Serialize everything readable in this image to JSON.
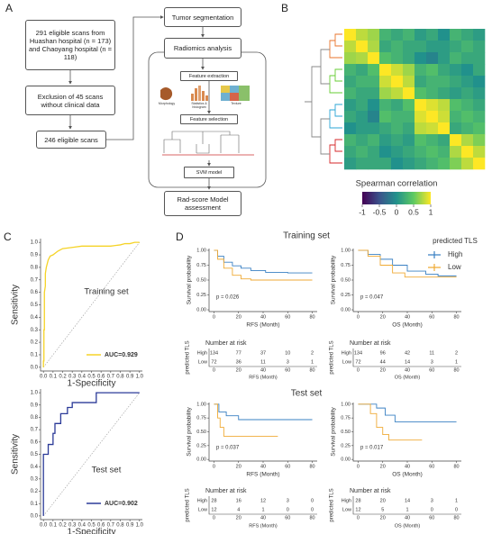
{
  "diagram": {
    "panel_labels": [
      "A",
      "B",
      "C",
      "D"
    ],
    "nodes": [
      "291 eligible scans from Huashan hospital (n = 173) and Chaoyang hospital (n = 118)",
      "Exclusion of 45 scans without clinical data",
      "246 eligible scans",
      "Tumor segmentation",
      "Radiomics analysis",
      "Feature extraction",
      "Feature selection",
      "SVM model",
      "Rad-score Model assessment"
    ],
    "icons": [
      "Morphology",
      "Statistics & histogram",
      "Texture"
    ]
  },
  "panel_d": {
    "headings": [
      "Training set",
      "Test set"
    ]
  },
  "chart_data": [
    {
      "type": "heatmap",
      "values": [
        [
          1,
          0.8,
          0.7,
          0.3,
          0.2,
          0.3,
          0.1,
          0.2,
          0.0,
          0.3,
          0.2,
          0.1
        ],
        [
          0.8,
          1,
          0.75,
          0.2,
          0.3,
          0.2,
          0.2,
          0.1,
          0.1,
          0.2,
          0.3,
          0.2
        ],
        [
          0.7,
          0.75,
          1,
          0.4,
          0.3,
          0.2,
          0.0,
          -0.1,
          0.1,
          0.3,
          0.2,
          0.2
        ],
        [
          0.3,
          0.2,
          0.4,
          1,
          0.85,
          0.7,
          0.3,
          0.4,
          0.2,
          0.1,
          0.0,
          0.2
        ],
        [
          0.2,
          0.3,
          0.3,
          0.85,
          1,
          0.8,
          0.2,
          0.3,
          0.3,
          0.2,
          0.1,
          0.0
        ],
        [
          0.3,
          0.2,
          0.2,
          0.7,
          0.8,
          1,
          0.4,
          0.3,
          0.2,
          0.1,
          0.2,
          0.1
        ],
        [
          0.1,
          0.2,
          0.0,
          0.3,
          0.2,
          0.4,
          1,
          0.9,
          0.8,
          0.4,
          0.3,
          0.2
        ],
        [
          0.2,
          0.1,
          -0.1,
          0.4,
          0.3,
          0.3,
          0.9,
          1,
          0.85,
          0.3,
          0.4,
          0.3
        ],
        [
          0.0,
          0.1,
          0.1,
          0.2,
          0.3,
          0.2,
          0.8,
          0.85,
          1,
          0.2,
          0.3,
          0.4
        ],
        [
          0.3,
          0.2,
          0.3,
          0.1,
          0.2,
          0.1,
          0.4,
          0.3,
          0.2,
          1,
          0.75,
          0.6
        ],
        [
          0.2,
          0.3,
          0.2,
          0.0,
          0.1,
          0.2,
          0.3,
          0.4,
          0.3,
          0.75,
          1,
          0.8
        ],
        [
          0.1,
          0.2,
          0.2,
          0.2,
          0.0,
          0.1,
          0.2,
          0.3,
          0.4,
          0.6,
          0.8,
          1
        ]
      ],
      "colorbar": {
        "title": "Spearman correlation",
        "clim": [
          -1,
          1
        ],
        "ticks": [
          -1,
          -0.5,
          0,
          0.5,
          1
        ]
      }
    },
    {
      "type": "line",
      "annotation": "Training set",
      "reference_line": true,
      "legend": "lower right",
      "xlabel": "1-Specificity",
      "ylabel": "Sensitivity",
      "x": [
        0,
        0,
        0.005,
        0.005,
        0.01,
        0.01,
        0.02,
        0.02,
        0.03,
        0.05,
        0.07,
        0.1,
        0.15,
        0.2,
        0.3,
        0.4,
        0.5,
        0.6,
        0.7,
        0.8,
        0.85,
        0.9,
        0.95,
        1
      ],
      "series": [
        {
          "name": "AUC=0.929",
          "color": "#f5d327",
          "values": [
            0,
            0.05,
            0.05,
            0.3,
            0.3,
            0.6,
            0.65,
            0.75,
            0.8,
            0.86,
            0.89,
            0.9,
            0.93,
            0.95,
            0.96,
            0.97,
            0.97,
            0.97,
            0.97,
            0.98,
            0.99,
            0.99,
            1,
            1
          ]
        }
      ],
      "xlim": [
        -0.03,
        1.03
      ],
      "ylim": [
        -0.03,
        1.03
      ],
      "xticks": [
        {
          "value": 0,
          "label": "0.0"
        },
        0.1,
        0.2,
        0.3,
        0.4,
        0.5,
        0.6,
        0.7,
        0.8,
        0.9,
        {
          "value": 1,
          "label": "1.0"
        }
      ],
      "yticks": [
        {
          "value": 0,
          "label": "0.0"
        },
        0.1,
        0.2,
        0.3,
        0.4,
        0.5,
        0.6,
        0.7,
        0.8,
        0.9,
        {
          "value": 1,
          "label": "1.0"
        }
      ]
    },
    {
      "type": "line",
      "annotation": "Test set",
      "reference_line": true,
      "legend": "lower right",
      "xlabel": "1-Specificity",
      "ylabel": "Sensitivity",
      "x": [
        0,
        0,
        0.05,
        0.05,
        0.1,
        0.1,
        0.12,
        0.12,
        0.18,
        0.18,
        0.25,
        0.25,
        0.3,
        0.3,
        0.55,
        0.55,
        1
      ],
      "series": [
        {
          "name": "AUC=0.902",
          "color": "#2b3a98",
          "values": [
            0,
            0.5,
            0.5,
            0.58,
            0.58,
            0.67,
            0.67,
            0.75,
            0.75,
            0.83,
            0.83,
            0.88,
            0.88,
            0.92,
            0.92,
            1,
            1
          ]
        }
      ],
      "xlim": [
        -0.03,
        1.03
      ],
      "ylim": [
        -0.03,
        1.03
      ],
      "xticks": [
        {
          "value": 0,
          "label": "0.0"
        },
        0.1,
        0.2,
        0.3,
        0.4,
        0.5,
        0.6,
        0.7,
        0.8,
        0.9,
        {
          "value": 1,
          "label": "1.0"
        }
      ],
      "yticks": [
        {
          "value": 0,
          "label": "0.0"
        },
        0.1,
        0.2,
        0.3,
        0.4,
        0.5,
        0.6,
        0.7,
        0.8,
        0.9,
        {
          "value": 1,
          "label": "1.0"
        }
      ]
    },
    {
      "type": "line",
      "annotation": "p = 0.026",
      "xlabel": "RFS (Month)",
      "ylabel": "Survival probability",
      "legend_title": "predicted TLS",
      "series": [
        {
          "name": "High",
          "color": "#3a80c3",
          "x": [
            0,
            3,
            3,
            8,
            8,
            15,
            15,
            22,
            22,
            30,
            30,
            42,
            42,
            60,
            60,
            80
          ],
          "values": [
            1,
            1,
            0.9,
            0.9,
            0.8,
            0.8,
            0.74,
            0.74,
            0.7,
            0.7,
            0.66,
            0.66,
            0.63,
            0.63,
            0.62,
            0.62
          ]
        },
        {
          "name": "Low",
          "color": "#efaa35",
          "x": [
            0,
            3,
            3,
            8,
            8,
            15,
            15,
            22,
            22,
            30,
            30,
            80
          ],
          "values": [
            1,
            1,
            0.85,
            0.85,
            0.7,
            0.7,
            0.58,
            0.58,
            0.52,
            0.52,
            0.5,
            0.5
          ]
        }
      ],
      "xlim": [
        -4,
        84
      ],
      "ylim": [
        -0.03,
        1.03
      ],
      "xticks": [
        0,
        20,
        40,
        60,
        80
      ],
      "yticks": [
        {
          "value": 0,
          "label": "0.00"
        },
        0.25,
        {
          "value": 0.5,
          "label": "0.50"
        },
        0.75,
        {
          "value": 1,
          "label": "1.00"
        }
      ],
      "risk_table": {
        "title": "Number at risk",
        "ylabel": "predicted TLS",
        "rows": [
          [
            134,
            77,
            37,
            10,
            2
          ],
          [
            72,
            36,
            11,
            3,
            1
          ]
        ]
      }
    },
    {
      "type": "line",
      "annotation": "p = 0.047",
      "xlabel": "OS (Month)",
      "ylabel": "Survival probability",
      "series": [
        {
          "name": "High",
          "color": "#3a80c3",
          "x": [
            0,
            8,
            8,
            18,
            18,
            28,
            28,
            40,
            40,
            55,
            55,
            65,
            65,
            80
          ],
          "values": [
            1,
            1,
            0.93,
            0.93,
            0.85,
            0.85,
            0.75,
            0.75,
            0.65,
            0.65,
            0.6,
            0.6,
            0.57,
            0.57
          ]
        },
        {
          "name": "Low",
          "color": "#efaa35",
          "x": [
            0,
            8,
            8,
            18,
            18,
            28,
            28,
            38,
            38,
            80
          ],
          "values": [
            1,
            1,
            0.9,
            0.9,
            0.75,
            0.75,
            0.62,
            0.62,
            0.55,
            0.55
          ]
        }
      ],
      "xlim": [
        -4,
        84
      ],
      "ylim": [
        -0.03,
        1.03
      ],
      "xticks": [
        0,
        20,
        40,
        60,
        80
      ],
      "yticks": [
        {
          "value": 0,
          "label": "0.00"
        },
        0.25,
        {
          "value": 0.5,
          "label": "0.50"
        },
        0.75,
        {
          "value": 1,
          "label": "1.00"
        }
      ],
      "risk_table": {
        "title": "Number at risk",
        "ylabel": "predicted TLS",
        "rows": [
          [
            134,
            96,
            42,
            11,
            2
          ],
          [
            72,
            44,
            14,
            3,
            1
          ]
        ]
      }
    },
    {
      "type": "line",
      "annotation": "p = 0.037",
      "xlabel": "RFS (Month)",
      "ylabel": "Survival probability",
      "series": [
        {
          "name": "High",
          "color": "#3a80c3",
          "x": [
            0,
            4,
            4,
            10,
            10,
            20,
            20,
            80
          ],
          "values": [
            1,
            1,
            0.86,
            0.86,
            0.79,
            0.79,
            0.72,
            0.72
          ]
        },
        {
          "name": "Low",
          "color": "#efaa35",
          "x": [
            0,
            3,
            3,
            5,
            5,
            8,
            8,
            52
          ],
          "values": [
            1,
            1,
            0.75,
            0.75,
            0.58,
            0.58,
            0.42,
            0.42
          ]
        }
      ],
      "xlim": [
        -4,
        84
      ],
      "ylim": [
        -0.03,
        1.03
      ],
      "xticks": [
        0,
        20,
        40,
        60,
        80
      ],
      "yticks": [
        {
          "value": 0,
          "label": "0.00"
        },
        0.25,
        {
          "value": 0.5,
          "label": "0.50"
        },
        0.75,
        {
          "value": 1,
          "label": "1.00"
        }
      ],
      "risk_table": {
        "title": "Number at risk",
        "ylabel": "predicted TLS",
        "rows": [
          [
            28,
            16,
            12,
            3,
            0
          ],
          [
            12,
            4,
            1,
            0,
            0
          ]
        ]
      }
    },
    {
      "type": "line",
      "annotation": "p = 0.017",
      "xlabel": "OS (Month)",
      "ylabel": "Survival probability",
      "series": [
        {
          "name": "High",
          "color": "#3a80c3",
          "x": [
            0,
            15,
            15,
            22,
            22,
            30,
            30,
            80
          ],
          "values": [
            1,
            1,
            0.93,
            0.93,
            0.8,
            0.8,
            0.68,
            0.68
          ]
        },
        {
          "name": "Low",
          "color": "#efaa35",
          "x": [
            0,
            10,
            10,
            15,
            15,
            20,
            20,
            25,
            25,
            52
          ],
          "values": [
            1,
            1,
            0.83,
            0.83,
            0.58,
            0.58,
            0.45,
            0.45,
            0.35,
            0.35
          ]
        }
      ],
      "xlim": [
        -4,
        84
      ],
      "ylim": [
        -0.03,
        1.03
      ],
      "xticks": [
        0,
        20,
        40,
        60,
        80
      ],
      "yticks": [
        {
          "value": 0,
          "label": "0.00"
        },
        0.25,
        {
          "value": 0.5,
          "label": "0.50"
        },
        0.75,
        {
          "value": 1,
          "label": "1.00"
        }
      ],
      "risk_table": {
        "title": "Number at risk",
        "ylabel": "predicted TLS",
        "rows": [
          [
            28,
            20,
            14,
            3,
            1
          ],
          [
            12,
            5,
            1,
            0,
            0
          ]
        ]
      }
    }
  ]
}
